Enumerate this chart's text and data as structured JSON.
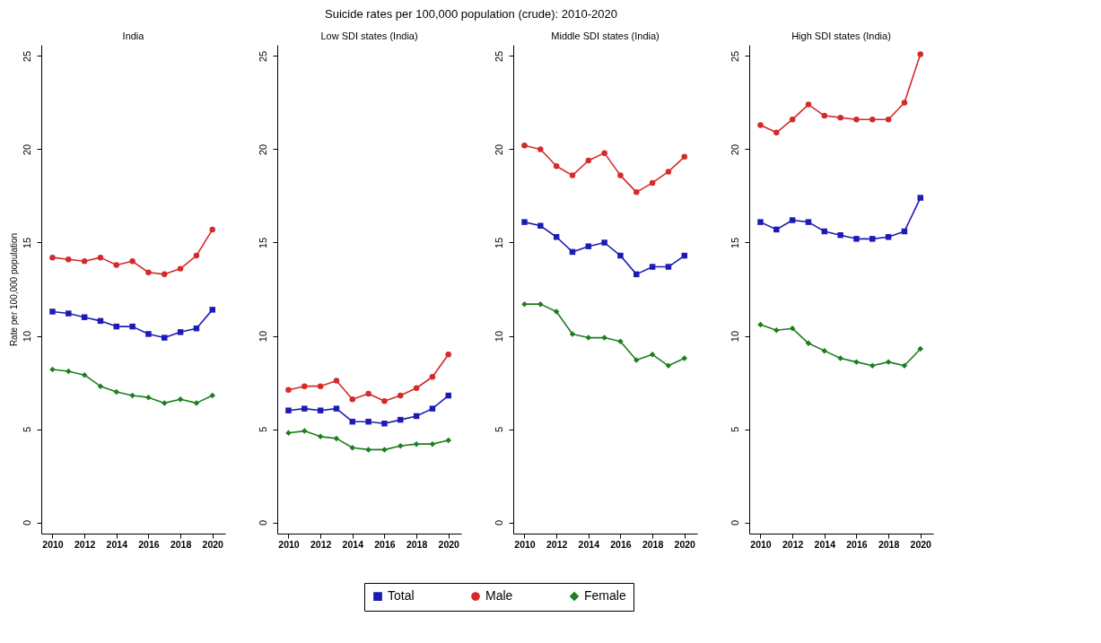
{
  "chart_data": [
    {
      "type": "line",
      "title": "India",
      "ylabel": "Rate per 100,000 population",
      "annotations": [
        "Suicide rates per 100,000 population (crude): 2010-2020"
      ],
      "legend": "bottom",
      "grid": false,
      "x": [
        2010,
        2011,
        2012,
        2013,
        2014,
        2015,
        2016,
        2017,
        2018,
        2019,
        2020
      ],
      "xlim": [
        2009.3,
        2020.8
      ],
      "xticks": [
        2010,
        2012,
        2014,
        2016,
        2018,
        2020
      ],
      "ylim": [
        -0.6,
        25.6
      ],
      "yticks": [
        0,
        5,
        10,
        15,
        20,
        25
      ],
      "series": [
        {
          "name": "Total",
          "color": "#1c1cb4",
          "marker": "square",
          "values": [
            11.3,
            11.2,
            11.0,
            10.8,
            10.5,
            10.5,
            10.1,
            9.9,
            10.2,
            10.4,
            11.4
          ]
        },
        {
          "name": "Male",
          "color": "#d42a2a",
          "marker": "circle",
          "values": [
            14.2,
            14.1,
            14.0,
            14.2,
            13.8,
            14.0,
            13.4,
            13.3,
            13.6,
            14.3,
            15.7
          ]
        },
        {
          "name": "Female",
          "color": "#1e7d1e",
          "marker": "diamond",
          "values": [
            8.2,
            8.1,
            7.9,
            7.3,
            7.0,
            6.8,
            6.7,
            6.4,
            6.6,
            6.4,
            6.8
          ]
        }
      ]
    },
    {
      "type": "line",
      "title": "Low SDI states (India)",
      "legend": "bottom",
      "grid": false,
      "x": [
        2010,
        2011,
        2012,
        2013,
        2014,
        2015,
        2016,
        2017,
        2018,
        2019,
        2020
      ],
      "xlim": [
        2009.3,
        2020.8
      ],
      "xticks": [
        2010,
        2012,
        2014,
        2016,
        2018,
        2020
      ],
      "ylim": [
        -0.6,
        25.6
      ],
      "yticks": [
        0,
        5,
        10,
        15,
        20,
        25
      ],
      "series": [
        {
          "name": "Total",
          "color": "#1c1cb4",
          "marker": "square",
          "values": [
            6.0,
            6.1,
            6.0,
            6.1,
            5.4,
            5.4,
            5.3,
            5.5,
            5.7,
            6.1,
            6.8
          ]
        },
        {
          "name": "Male",
          "color": "#d42a2a",
          "marker": "circle",
          "values": [
            7.1,
            7.3,
            7.3,
            7.6,
            6.6,
            6.9,
            6.5,
            6.8,
            7.2,
            7.8,
            9.0
          ]
        },
        {
          "name": "Female",
          "color": "#1e7d1e",
          "marker": "diamond",
          "values": [
            4.8,
            4.9,
            4.6,
            4.5,
            4.0,
            3.9,
            3.9,
            4.1,
            4.2,
            4.2,
            4.4
          ]
        }
      ]
    },
    {
      "type": "line",
      "title": "Middle SDI states (India)",
      "legend": "bottom",
      "grid": false,
      "x": [
        2010,
        2011,
        2012,
        2013,
        2014,
        2015,
        2016,
        2017,
        2018,
        2019,
        2020
      ],
      "xlim": [
        2009.3,
        2020.8
      ],
      "xticks": [
        2010,
        2012,
        2014,
        2016,
        2018,
        2020
      ],
      "ylim": [
        -0.6,
        25.6
      ],
      "yticks": [
        0,
        5,
        10,
        15,
        20,
        25
      ],
      "series": [
        {
          "name": "Total",
          "color": "#1c1cb4",
          "marker": "square",
          "values": [
            16.1,
            15.9,
            15.3,
            14.5,
            14.8,
            15.0,
            14.3,
            13.3,
            13.7,
            13.7,
            14.3
          ]
        },
        {
          "name": "Male",
          "color": "#d42a2a",
          "marker": "circle",
          "values": [
            20.2,
            20.0,
            19.1,
            18.6,
            19.4,
            19.8,
            18.6,
            17.7,
            18.2,
            18.8,
            19.6
          ]
        },
        {
          "name": "Female",
          "color": "#1e7d1e",
          "marker": "diamond",
          "values": [
            11.7,
            11.7,
            11.3,
            10.1,
            9.9,
            9.9,
            9.7,
            8.7,
            9.0,
            8.4,
            8.8
          ]
        }
      ]
    },
    {
      "type": "line",
      "title": "High SDI states (India)",
      "legend": "bottom",
      "grid": false,
      "x": [
        2010,
        2011,
        2012,
        2013,
        2014,
        2015,
        2016,
        2017,
        2018,
        2019,
        2020
      ],
      "xlim": [
        2009.3,
        2020.8
      ],
      "xticks": [
        2010,
        2012,
        2014,
        2016,
        2018,
        2020
      ],
      "ylim": [
        -0.6,
        25.6
      ],
      "yticks": [
        0,
        5,
        10,
        15,
        20,
        25
      ],
      "series": [
        {
          "name": "Total",
          "color": "#1c1cb4",
          "marker": "square",
          "values": [
            16.1,
            15.7,
            16.2,
            16.1,
            15.6,
            15.4,
            15.2,
            15.2,
            15.3,
            15.6,
            17.4
          ]
        },
        {
          "name": "Male",
          "color": "#d42a2a",
          "marker": "circle",
          "values": [
            21.3,
            20.9,
            21.6,
            22.4,
            21.8,
            21.7,
            21.6,
            21.6,
            21.6,
            22.5,
            25.1
          ]
        },
        {
          "name": "Female",
          "color": "#1e7d1e",
          "marker": "diamond",
          "values": [
            10.6,
            10.3,
            10.4,
            9.6,
            9.2,
            8.8,
            8.6,
            8.4,
            8.6,
            8.4,
            9.3
          ]
        }
      ]
    }
  ]
}
